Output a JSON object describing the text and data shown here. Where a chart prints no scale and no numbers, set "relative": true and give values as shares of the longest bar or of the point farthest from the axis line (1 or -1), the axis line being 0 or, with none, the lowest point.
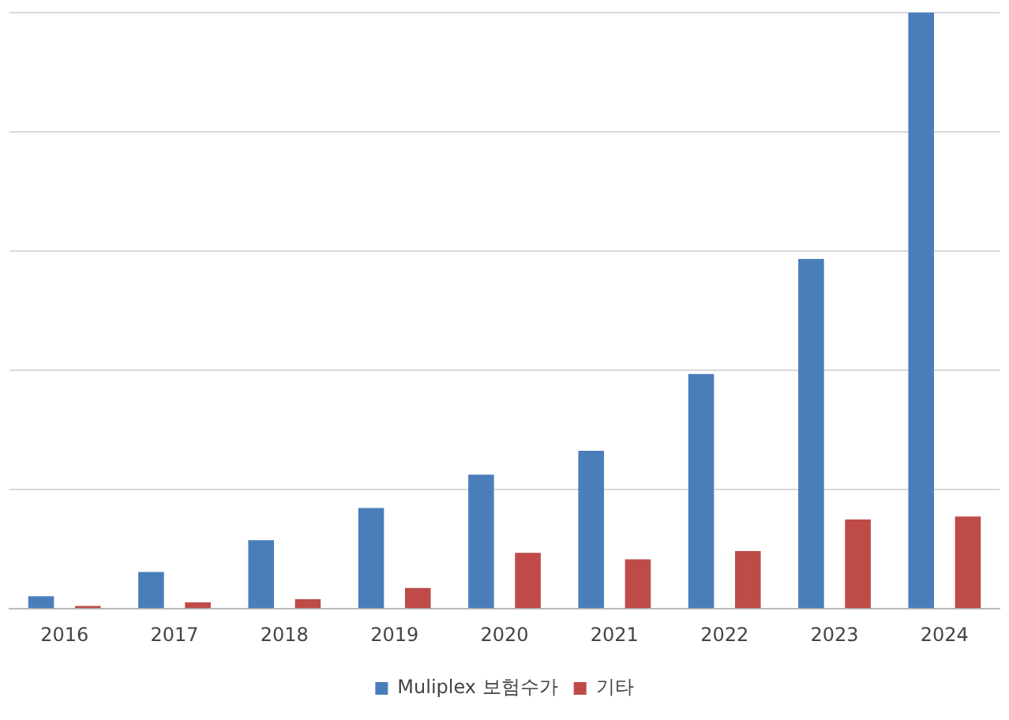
{
  "chart_data": {
    "type": "bar",
    "relative": true,
    "categories": [
      "2016",
      "2017",
      "2018",
      "2019",
      "2020",
      "2021",
      "2022",
      "2023",
      "2024"
    ],
    "series": [
      {
        "name": "Muliplex 보험수가",
        "color": "#4a7ebb",
        "values": [
          0.021,
          0.062,
          0.115,
          0.169,
          0.225,
          0.265,
          0.394,
          0.587,
          1
        ]
      },
      {
        "name": "기타",
        "color": "#be4b48",
        "values": [
          0.005,
          0.011,
          0.016,
          0.035,
          0.094,
          0.083,
          0.097,
          0.15,
          0.155
        ]
      }
    ],
    "grid": "y",
    "legend": "bottom"
  }
}
